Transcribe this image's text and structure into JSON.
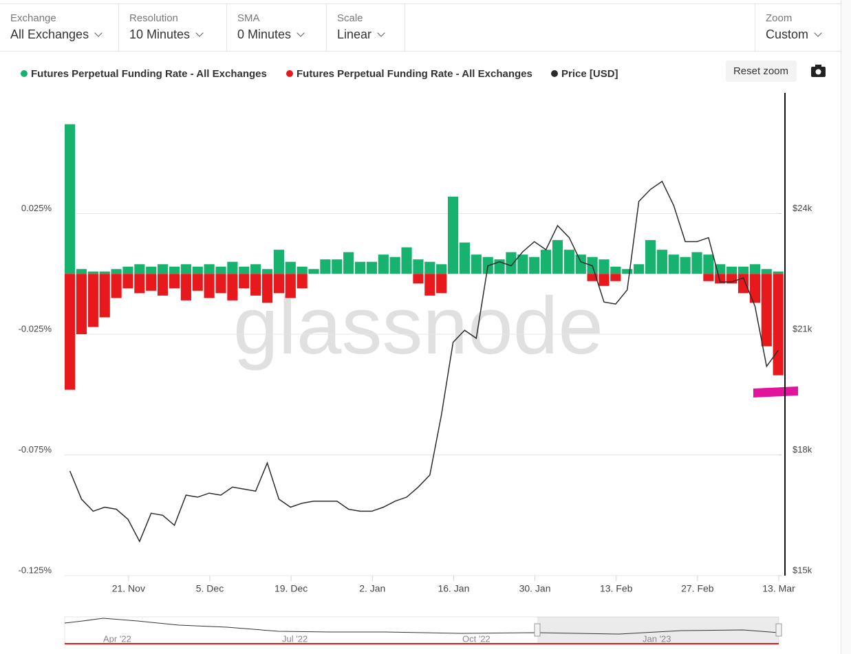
{
  "controls": [
    {
      "label": "Exchange",
      "value": "All Exchanges"
    },
    {
      "label": "Resolution",
      "value": "10 Minutes"
    },
    {
      "label": "SMA",
      "value": "0 Minutes"
    },
    {
      "label": "Scale",
      "value": "Linear"
    },
    {
      "label": "Zoom",
      "value": "Custom"
    }
  ],
  "reset_zoom": "Reset zoom",
  "watermark": "glassnode",
  "navigator_labels": [
    "Apr '22",
    "Jul '22",
    "Oct '22",
    "Jan '23"
  ],
  "chart_data": {
    "type": "bar",
    "x": [
      "2022-11-10",
      "2022-11-12",
      "2022-11-14",
      "2022-11-16",
      "2022-11-18",
      "2022-11-20",
      "2022-11-22",
      "2022-11-24",
      "2022-11-26",
      "2022-11-28",
      "2022-11-30",
      "2022-12-02",
      "2022-12-04",
      "2022-12-06",
      "2022-12-08",
      "2022-12-10",
      "2022-12-12",
      "2022-12-14",
      "2022-12-16",
      "2022-12-18",
      "2022-12-20",
      "2022-12-22",
      "2022-12-24",
      "2022-12-26",
      "2022-12-28",
      "2022-12-30",
      "2023-01-01",
      "2023-01-03",
      "2023-01-05",
      "2023-01-07",
      "2023-01-09",
      "2023-01-11",
      "2023-01-13",
      "2023-01-15",
      "2023-01-17",
      "2023-01-19",
      "2023-01-21",
      "2023-01-23",
      "2023-01-25",
      "2023-01-27",
      "2023-01-29",
      "2023-01-31",
      "2023-02-02",
      "2023-02-04",
      "2023-02-06",
      "2023-02-08",
      "2023-02-10",
      "2023-02-12",
      "2023-02-14",
      "2023-02-16",
      "2023-02-18",
      "2023-02-20",
      "2023-02-22",
      "2023-02-24",
      "2023-02-26",
      "2023-02-28",
      "2023-03-02",
      "2023-03-04",
      "2023-03-06",
      "2023-03-08",
      "2023-03-10",
      "2023-03-12"
    ],
    "xlim": [
      "2022-11-10",
      "2023-03-13"
    ],
    "xticks": [
      {
        "value": "2022-11-21",
        "label": "21. Nov"
      },
      {
        "value": "2022-12-05",
        "label": "5. Dec"
      },
      {
        "value": "2022-12-19",
        "label": "19. Dec"
      },
      {
        "value": "2023-01-02",
        "label": "2. Jan"
      },
      {
        "value": "2023-01-16",
        "label": "16. Jan"
      },
      {
        "value": "2023-01-30",
        "label": "30. Jan"
      },
      {
        "value": "2023-02-13",
        "label": "13. Feb"
      },
      {
        "value": "2023-02-27",
        "label": "27. Feb"
      },
      {
        "value": "2023-03-13",
        "label": "13. Mar"
      }
    ],
    "ylim": [
      -0.125,
      0.075
    ],
    "yticks": [
      {
        "value": 0.025,
        "label": "0.025%"
      },
      {
        "value": -0.025,
        "label": "-0.025%"
      },
      {
        "value": -0.075,
        "label": "-0.075%"
      },
      {
        "value": -0.125,
        "label": "-0.125%"
      }
    ],
    "y2lim": [
      15000,
      27000
    ],
    "y2ticks": [
      {
        "value": 24000,
        "label": "$24k"
      },
      {
        "value": 21000,
        "label": "$21k"
      },
      {
        "value": 18000,
        "label": "$18k"
      },
      {
        "value": 15000,
        "label": "$15k"
      }
    ],
    "grid": true,
    "series": [
      {
        "name": "Futures Perpetual Funding Rate - All Exchanges",
        "color": "#16b26e",
        "type": "bar",
        "values": [
          0.062,
          0.002,
          0.001,
          0.001,
          0.002,
          0.003,
          0.004,
          0.003,
          0.004,
          0.003,
          0.004,
          0.003,
          0.004,
          0.003,
          0.005,
          0.003,
          0.004,
          0.002,
          0.01,
          0.005,
          0.003,
          0.002,
          0.006,
          0.006,
          0.009,
          0.005,
          0.005,
          0.008,
          0.007,
          0.011,
          0.006,
          0.005,
          0.004,
          0.032,
          0.013,
          0.008,
          0.007,
          0.006,
          0.009,
          0.008,
          0.007,
          0.01,
          0.014,
          0.01,
          0.008,
          0.007,
          0.006,
          0.003,
          0.002,
          0.004,
          0.014,
          0.01,
          0.008,
          0.007,
          0.009,
          0.008,
          0.004,
          0.003,
          0.003,
          0.004,
          0.002,
          0.001
        ]
      },
      {
        "name": "Futures Perpetual Funding Rate - All Exchanges",
        "color": "#e8191c",
        "type": "bar",
        "values": [
          -0.048,
          -0.025,
          -0.022,
          -0.018,
          -0.01,
          -0.006,
          -0.008,
          -0.007,
          -0.009,
          -0.006,
          -0.011,
          -0.007,
          -0.01,
          -0.008,
          -0.011,
          -0.006,
          -0.009,
          -0.012,
          -0.008,
          -0.01,
          -0.006,
          null,
          null,
          null,
          null,
          null,
          null,
          null,
          null,
          null,
          -0.004,
          -0.009,
          -0.008,
          null,
          null,
          null,
          null,
          null,
          null,
          null,
          null,
          null,
          null,
          null,
          null,
          -0.003,
          -0.005,
          -0.003,
          null,
          null,
          null,
          null,
          null,
          null,
          null,
          -0.003,
          -0.004,
          -0.004,
          -0.008,
          -0.012,
          -0.03,
          -0.042
        ]
      },
      {
        "name": "Price [USD]",
        "color": "#2b2b2b",
        "type": "line",
        "axis": "y2",
        "values": [
          17600,
          16900,
          16600,
          16700,
          16650,
          16400,
          15850,
          16550,
          16500,
          16250,
          17000,
          16950,
          17050,
          17000,
          17200,
          17150,
          17100,
          17800,
          16900,
          16700,
          16800,
          16850,
          16850,
          16850,
          16650,
          16600,
          16600,
          16700,
          16850,
          16950,
          17200,
          17500,
          19000,
          20800,
          21100,
          20900,
          22700,
          22800,
          22700,
          23050,
          23300,
          23100,
          23700,
          23400,
          22800,
          22700,
          21800,
          21750,
          22100,
          24300,
          24600,
          24800,
          24200,
          23300,
          23300,
          23400,
          22300,
          22300,
          22400,
          21700,
          20200,
          20600
        ]
      }
    ]
  }
}
